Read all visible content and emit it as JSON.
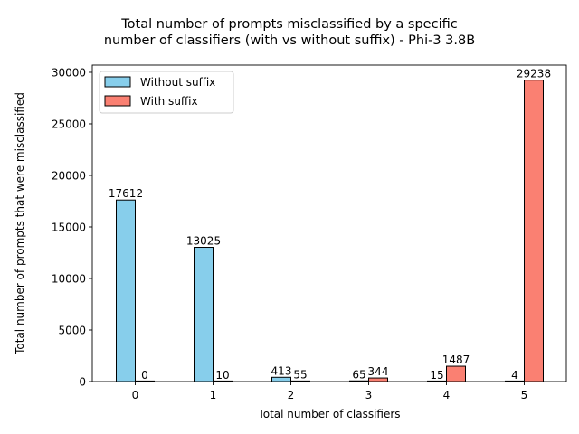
{
  "chart_data": {
    "type": "bar",
    "title_lines": [
      "Total number of prompts misclassified by a specific",
      "number of classifiers (with vs without suffix) - Phi-3 3.8B"
    ],
    "xlabel": "Total number of classifiers",
    "ylabel": "Total number of prompts that were misclassified",
    "categories": [
      "0",
      "1",
      "2",
      "3",
      "4",
      "5"
    ],
    "ylim": [
      0,
      30700
    ],
    "yticks": [
      0,
      5000,
      10000,
      15000,
      20000,
      25000,
      30000
    ],
    "grid": false,
    "legend_position": "top-left",
    "series": [
      {
        "name": "Without suffix",
        "color": "#87CEEB",
        "values": [
          17612,
          13025,
          413,
          65,
          15,
          4
        ]
      },
      {
        "name": "With suffix",
        "color": "#FA8072",
        "values": [
          0,
          10,
          55,
          344,
          1487,
          29238
        ]
      }
    ]
  }
}
